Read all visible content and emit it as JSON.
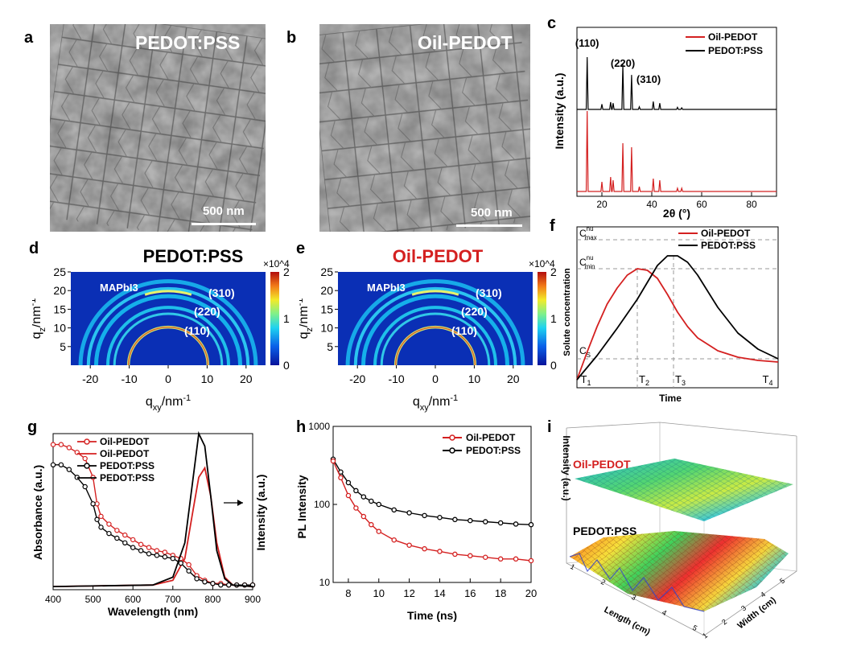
{
  "panels": {
    "a": "a",
    "b": "b",
    "c": "c",
    "d": "d",
    "e": "e",
    "f": "f",
    "g": "g",
    "h": "h",
    "i": "i"
  },
  "sem_a": {
    "title": "PEDOT:PSS",
    "scale": "500 nm"
  },
  "sem_b": {
    "title": "Oil-PEDOT",
    "scale": "500 nm"
  },
  "colors": {
    "oil": "#d42020",
    "pedot": "#000000"
  },
  "chart_data": [
    {
      "id": "c",
      "type": "line",
      "xlabel": "2θ (°)",
      "ylabel": "Intensity (a.u.)",
      "xlim": [
        10,
        90
      ],
      "x_ticks": [
        20,
        40,
        60,
        80
      ],
      "legend": [
        "Oil-PEDOT",
        "PEDOT:PSS"
      ],
      "peak_labels": [
        {
          "text": "(110)",
          "x": 14.1
        },
        {
          "text": "(220)",
          "x": 28.4
        },
        {
          "text": "(310)",
          "x": 31.9
        }
      ],
      "series": [
        {
          "name": "Oil-PEDOT",
          "peaks": [
            [
              14.1,
              1.0
            ],
            [
              20.0,
              0.12
            ],
            [
              23.5,
              0.18
            ],
            [
              24.5,
              0.14
            ],
            [
              28.4,
              0.6
            ],
            [
              31.9,
              0.55
            ],
            [
              35.0,
              0.06
            ],
            [
              40.6,
              0.16
            ],
            [
              43.2,
              0.14
            ],
            [
              50.3,
              0.04
            ],
            [
              52.0,
              0.04
            ]
          ]
        },
        {
          "name": "PEDOT:PSS",
          "peaks": [
            [
              14.1,
              1.0
            ],
            [
              20.0,
              0.1
            ],
            [
              23.5,
              0.14
            ],
            [
              24.5,
              0.12
            ],
            [
              28.4,
              0.86
            ],
            [
              31.9,
              0.66
            ],
            [
              35.0,
              0.05
            ],
            [
              40.6,
              0.15
            ],
            [
              43.2,
              0.12
            ],
            [
              50.3,
              0.04
            ],
            [
              52.0,
              0.03
            ]
          ]
        }
      ]
    },
    {
      "id": "d",
      "type": "heatmap",
      "title": "PEDOT:PSS",
      "xlabel": "q_xy/nm^-1",
      "ylabel": "q_z/nm^-1",
      "xlim": [
        -25,
        25
      ],
      "ylim": [
        0,
        25
      ],
      "x_ticks": [
        -20,
        -10,
        0,
        10,
        20
      ],
      "y_ticks": [
        5,
        10,
        15,
        20,
        25
      ],
      "colorbar": {
        "ticks": [
          0,
          1,
          2
        ],
        "multiplier": "×10^4"
      },
      "annotations": [
        "MAPbI3",
        "(310)",
        "(220)",
        "(110)"
      ]
    },
    {
      "id": "e",
      "type": "heatmap",
      "title": "Oil-PEDOT",
      "xlabel": "q_xy/nm^-1",
      "ylabel": "q_z/nm^-1",
      "xlim": [
        -25,
        25
      ],
      "ylim": [
        0,
        25
      ],
      "x_ticks": [
        -20,
        -10,
        0,
        10,
        20
      ],
      "y_ticks": [
        5,
        10,
        15,
        20,
        25
      ],
      "colorbar": {
        "ticks": [
          0,
          1,
          2
        ],
        "multiplier": "×10^4"
      },
      "annotations": [
        "MAPbI3",
        "(310)",
        "(220)",
        "(110)"
      ]
    },
    {
      "id": "f",
      "type": "line",
      "xlabel": "Time",
      "ylabel": "Solute concentration",
      "legend": [
        "Oil-PEDOT",
        "PEDOT:PSS"
      ],
      "levels": [
        "C_max^nu",
        "C_min^nu",
        "C_S"
      ],
      "time_marks": [
        "T1",
        "T2",
        "T3",
        "T4"
      ],
      "series": [
        {
          "name": "Oil-PEDOT",
          "x": [
            0,
            0.05,
            0.1,
            0.15,
            0.2,
            0.25,
            0.3,
            0.35,
            0.4,
            0.45,
            0.5,
            0.55,
            0.6,
            0.7,
            0.8,
            0.9,
            1.0
          ],
          "y": [
            0.05,
            0.22,
            0.38,
            0.52,
            0.62,
            0.7,
            0.74,
            0.73,
            0.68,
            0.58,
            0.47,
            0.38,
            0.31,
            0.23,
            0.19,
            0.17,
            0.16
          ]
        },
        {
          "name": "PEDOT:PSS",
          "x": [
            0,
            0.1,
            0.2,
            0.3,
            0.4,
            0.45,
            0.5,
            0.55,
            0.6,
            0.7,
            0.8,
            0.9,
            1.0
          ],
          "y": [
            0.05,
            0.2,
            0.37,
            0.55,
            0.76,
            0.82,
            0.82,
            0.78,
            0.7,
            0.5,
            0.34,
            0.24,
            0.18
          ]
        }
      ]
    },
    {
      "id": "g",
      "type": "line",
      "xlabel": "Wavelength (nm)",
      "ylabel": "Absorbance (a.u.)",
      "y2label": "Intensity (a.u.)",
      "xlim": [
        400,
        900
      ],
      "x_ticks": [
        400,
        500,
        600,
        700,
        800,
        900
      ],
      "legend": [
        "Oil-PEDOT",
        "Oil-PEDOT",
        "PEDOT:PSS",
        "PEDOT:PSS"
      ],
      "series": [
        {
          "name": "Oil-PEDOT",
          "kind": "absorbance",
          "x": [
            400,
            420,
            440,
            460,
            480,
            500,
            510,
            520,
            540,
            560,
            580,
            600,
            620,
            640,
            660,
            680,
            700,
            720,
            740,
            760,
            780,
            800,
            820,
            840,
            860,
            880,
            900
          ],
          "y": [
            0.93,
            0.93,
            0.91,
            0.88,
            0.84,
            0.72,
            0.55,
            0.47,
            0.42,
            0.38,
            0.35,
            0.32,
            0.29,
            0.27,
            0.25,
            0.24,
            0.22,
            0.2,
            0.16,
            0.09,
            0.06,
            0.04,
            0.04,
            0.03,
            0.03,
            0.03,
            0.03
          ]
        },
        {
          "name": "Oil-PEDOT",
          "kind": "pl",
          "x": [
            400,
            650,
            700,
            730,
            750,
            765,
            780,
            795,
            810,
            830,
            850,
            900
          ],
          "y": [
            0.02,
            0.03,
            0.06,
            0.2,
            0.5,
            0.72,
            0.78,
            0.6,
            0.3,
            0.08,
            0.03,
            0.02
          ]
        },
        {
          "name": "PEDOT:PSS",
          "kind": "absorbance",
          "x": [
            400,
            420,
            440,
            460,
            480,
            500,
            510,
            520,
            540,
            560,
            580,
            600,
            620,
            640,
            660,
            680,
            700,
            720,
            740,
            760,
            780,
            800,
            820,
            840,
            860,
            880,
            900
          ],
          "y": [
            0.8,
            0.8,
            0.77,
            0.72,
            0.66,
            0.55,
            0.45,
            0.4,
            0.36,
            0.33,
            0.3,
            0.27,
            0.25,
            0.23,
            0.22,
            0.21,
            0.2,
            0.17,
            0.12,
            0.07,
            0.05,
            0.04,
            0.03,
            0.03,
            0.03,
            0.03,
            0.03
          ]
        },
        {
          "name": "PEDOT:PSS",
          "kind": "pl",
          "x": [
            400,
            650,
            700,
            730,
            750,
            765,
            780,
            795,
            810,
            830,
            850,
            900
          ],
          "y": [
            0.02,
            0.03,
            0.08,
            0.3,
            0.7,
            1.0,
            0.92,
            0.6,
            0.25,
            0.07,
            0.03,
            0.02
          ]
        }
      ]
    },
    {
      "id": "h",
      "type": "scatter",
      "xlabel": "Time (ns)",
      "ylabel": "PL Intensity",
      "yscale": "log",
      "xlim": [
        7,
        20
      ],
      "ylim": [
        10,
        1000
      ],
      "x_ticks": [
        8,
        10,
        12,
        14,
        16,
        18,
        20
      ],
      "y_ticks": [
        10,
        100,
        1000
      ],
      "legend": [
        "Oil-PEDOT",
        "PEDOT:PSS"
      ],
      "series": [
        {
          "name": "Oil-PEDOT",
          "x": [
            7,
            7.5,
            8,
            8.5,
            9,
            9.5,
            10,
            11,
            12,
            13,
            14,
            15,
            16,
            17,
            18,
            19,
            20
          ],
          "y": [
            360,
            220,
            130,
            90,
            70,
            55,
            45,
            35,
            30,
            27,
            25,
            23,
            22,
            21,
            20,
            20,
            19
          ]
        },
        {
          "name": "PEDOT:PSS",
          "x": [
            7,
            7.5,
            8,
            8.5,
            9,
            9.5,
            10,
            11,
            12,
            13,
            14,
            15,
            16,
            17,
            18,
            19,
            20
          ],
          "y": [
            380,
            260,
            190,
            150,
            125,
            110,
            100,
            85,
            78,
            72,
            68,
            64,
            62,
            60,
            58,
            56,
            55
          ]
        }
      ]
    },
    {
      "id": "i",
      "type": "heatmap",
      "ylabel": "Intensity (a.u.)",
      "xlabel": "Length (cm)",
      "zlabel": "Width (cm)",
      "x_ticks": [
        1,
        2,
        3,
        4,
        5
      ],
      "z_ticks": [
        1,
        2,
        3,
        4,
        5
      ],
      "surfaces": [
        "Oil-PEDOT",
        "PEDOT:PSS"
      ]
    }
  ]
}
